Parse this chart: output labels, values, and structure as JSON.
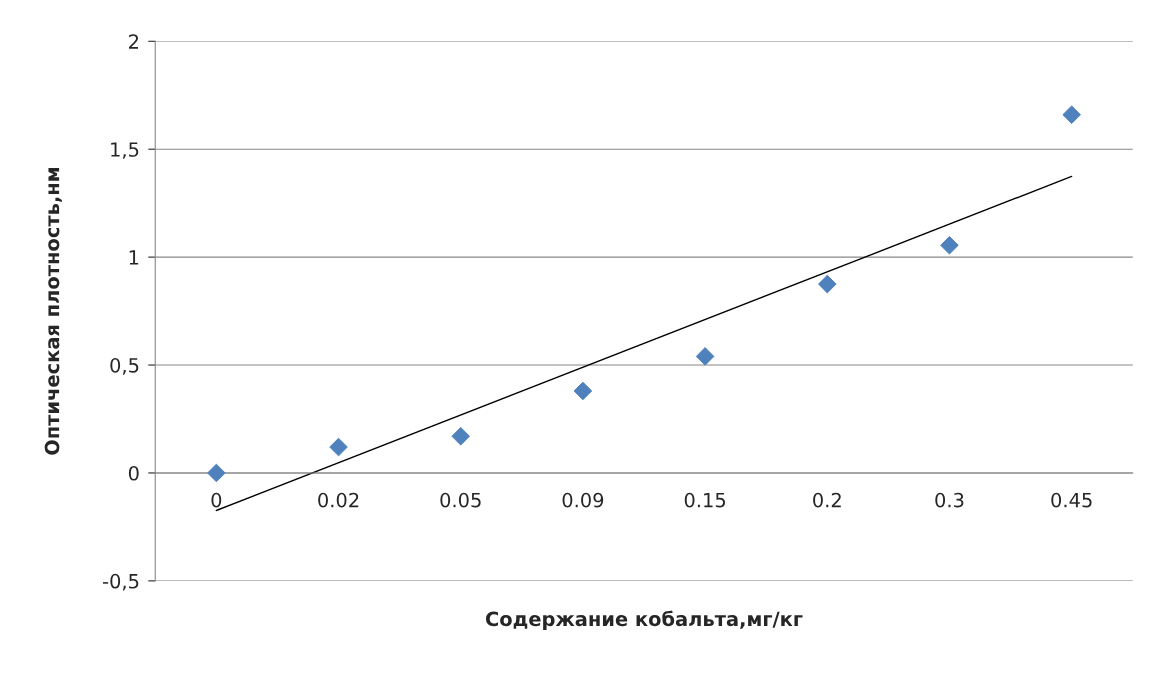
{
  "chart_data": {
    "type": "scatter",
    "xlabel": "Содержание кобальта,мг/кг",
    "ylabel": "Оптическая плотность,нм",
    "categories": [
      "0",
      "0.02",
      "0.05",
      "0.09",
      "0.15",
      "0.2",
      "0.3",
      "0.45"
    ],
    "series": [
      {
        "color": "#4f81bd",
        "marker": "diamond",
        "values": [
          0.0,
          0.12,
          0.17,
          0.38,
          0.54,
          0.875,
          1.055,
          1.66
        ]
      },
      {
        "type": "line",
        "color": "#000000",
        "line_style": "solid",
        "marker": "none",
        "x": [
          "0",
          "0.45"
        ],
        "values": [
          -0.174,
          1.374
        ]
      }
    ],
    "ylim": [
      -0.5,
      2
    ],
    "yticks": [
      {
        "value": -0.5,
        "label": "-0,5"
      },
      0,
      {
        "value": 0.5,
        "label": "0,5"
      },
      1,
      {
        "value": 1.5,
        "label": "1,5"
      },
      2
    ],
    "grid": "y",
    "legend": false
  }
}
